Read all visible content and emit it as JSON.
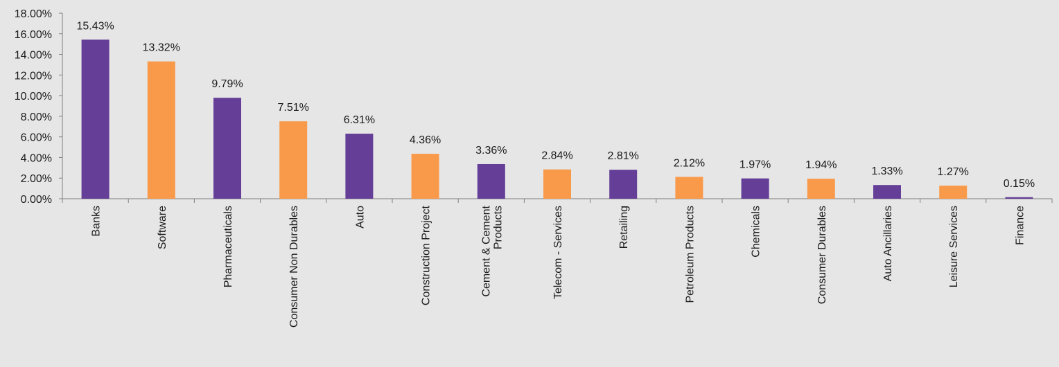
{
  "chart_data": {
    "type": "bar",
    "categories": [
      "Banks",
      "Software",
      "Pharmaceuticals",
      "Consumer Non Durables",
      "Auto",
      "Construction Project",
      "Cement & Cement Products",
      "Telecom - Services",
      "Retailing",
      "Petroleum Products",
      "Chemicals",
      "Consumer Durables",
      "Auto Ancillaries",
      "Leisure Services",
      "Finance"
    ],
    "category_lines": [
      [
        "Banks"
      ],
      [
        "Software"
      ],
      [
        "Pharmaceuticals"
      ],
      [
        "Consumer Non Durables"
      ],
      [
        "Auto"
      ],
      [
        "Construction Project"
      ],
      [
        "Cement & Cement",
        "Products"
      ],
      [
        "Telecom - Services"
      ],
      [
        "Retailing"
      ],
      [
        "Petroleum Products"
      ],
      [
        "Chemicals"
      ],
      [
        "Consumer Durables"
      ],
      [
        "Auto Ancillaries"
      ],
      [
        "Leisure Services"
      ],
      [
        "Finance"
      ]
    ],
    "values": [
      15.43,
      13.32,
      9.79,
      7.51,
      6.31,
      4.36,
      3.36,
      2.84,
      2.81,
      2.12,
      1.97,
      1.94,
      1.33,
      1.27,
      0.15
    ],
    "data_labels": [
      "15.43%",
      "13.32%",
      "9.79%",
      "7.51%",
      "6.31%",
      "4.36%",
      "3.36%",
      "2.84%",
      "2.81%",
      "2.12%",
      "1.97%",
      "1.94%",
      "1.33%",
      "1.27%",
      "0.15%"
    ],
    "y_ticks": [
      0,
      2,
      4,
      6,
      8,
      10,
      12,
      14,
      16,
      18
    ],
    "y_tick_labels": [
      "0.00%",
      "2.00%",
      "4.00%",
      "6.00%",
      "8.00%",
      "10.00%",
      "12.00%",
      "14.00%",
      "16.00%",
      "18.00%"
    ],
    "ylim": [
      0,
      18
    ],
    "colors": [
      "#643e97",
      "#f99a4b"
    ],
    "title": "",
    "xlabel": "",
    "ylabel": "",
    "grid": false,
    "legend": "none"
  }
}
